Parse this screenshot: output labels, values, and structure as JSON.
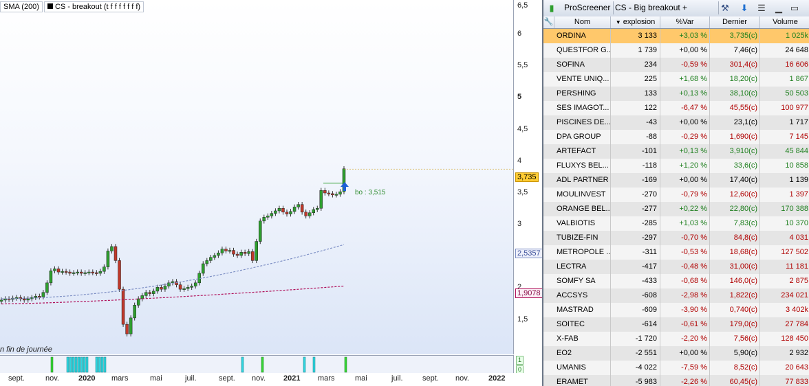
{
  "legend": {
    "sma": "SMA (200)",
    "cs": "CS - breakout (t f f f f f f f)"
  },
  "end_of_day": "n fin de journée",
  "bo_label": "bo : 3,515",
  "indicator_labels": [
    "1",
    "0"
  ],
  "price_axis": {
    "ticks": [
      "6,5",
      "6",
      "5,5",
      "5",
      "4,5",
      "4",
      "3,5",
      "3",
      "2,5",
      "2",
      "1,5"
    ],
    "last_price": "3,735",
    "sma_value": "2,5357",
    "ma2_value": "1,9078"
  },
  "time_axis": [
    "sept.",
    "nov.",
    "2020",
    "mars",
    "mai",
    "juil.",
    "sept.",
    "nov.",
    "2021",
    "mars",
    "mai",
    "juil.",
    "sept.",
    "nov.",
    "2022"
  ],
  "colors": {
    "up_candle": "#2e9e2e",
    "down_candle": "#c0392b",
    "sma_line": "#7d8fc4",
    "ma2_line": "#b0105a",
    "positive": "#1e7f1e",
    "negative": "#b00000",
    "selected_row": "#ffc86b"
  },
  "panel": {
    "app_name": "ProScreener",
    "screener_name": "CS - Big breakout + tracking",
    "icons": [
      "candlestick-icon",
      "wrench-icon",
      "download-icon",
      "menu-icon",
      "minimize-icon",
      "maximize-icon"
    ],
    "columns": [
      "Nom",
      "explosion",
      "%Var",
      "Dernier",
      "Volume"
    ],
    "rows": [
      {
        "name": "ORDINA",
        "explosion": "3 133",
        "var": "+3,03 %",
        "last": "3,735(c)",
        "volume": "1 025k",
        "trend": "up"
      },
      {
        "name": "QUESTFOR G...",
        "explosion": "1 739",
        "var": "+0,00 %",
        "last": "7,46(c)",
        "volume": "24 648",
        "trend": "flat"
      },
      {
        "name": "SOFINA",
        "explosion": "234",
        "var": "-0,59 %",
        "last": "301,4(c)",
        "volume": "16 606",
        "trend": "down"
      },
      {
        "name": "VENTE UNIQ...",
        "explosion": "225",
        "var": "+1,68 %",
        "last": "18,20(c)",
        "volume": "1 867",
        "trend": "up"
      },
      {
        "name": "PERSHING",
        "explosion": "133",
        "var": "+0,13 %",
        "last": "38,10(c)",
        "volume": "50 503",
        "trend": "up"
      },
      {
        "name": "SES IMAGOT...",
        "explosion": "122",
        "var": "-6,47 %",
        "last": "45,55(c)",
        "volume": "100 977",
        "trend": "down"
      },
      {
        "name": "PISCINES DE...",
        "explosion": "-43",
        "var": "+0,00 %",
        "last": "23,1(c)",
        "volume": "1 717",
        "trend": "flat"
      },
      {
        "name": "DPA GROUP",
        "explosion": "-88",
        "var": "-0,29 %",
        "last": "1,690(c)",
        "volume": "7 145",
        "trend": "down"
      },
      {
        "name": "ARTEFACT",
        "explosion": "-101",
        "var": "+0,13 %",
        "last": "3,910(c)",
        "volume": "45 844",
        "trend": "up"
      },
      {
        "name": "FLUXYS BEL...",
        "explosion": "-118",
        "var": "+1,20 %",
        "last": "33,6(c)",
        "volume": "10 858",
        "trend": "up"
      },
      {
        "name": "ADL PARTNER",
        "explosion": "-169",
        "var": "+0,00 %",
        "last": "17,40(c)",
        "volume": "1 139",
        "trend": "flat"
      },
      {
        "name": "MOULINVEST",
        "explosion": "-270",
        "var": "-0,79 %",
        "last": "12,60(c)",
        "volume": "1 397",
        "trend": "down"
      },
      {
        "name": "ORANGE BEL...",
        "explosion": "-277",
        "var": "+0,22 %",
        "last": "22,80(c)",
        "volume": "170 388",
        "trend": "up"
      },
      {
        "name": "VALBIOTIS",
        "explosion": "-285",
        "var": "+1,03 %",
        "last": "7,83(c)",
        "volume": "10 370",
        "trend": "up"
      },
      {
        "name": "TUBIZE-FIN",
        "explosion": "-297",
        "var": "-0,70 %",
        "last": "84,8(c)",
        "volume": "4 031",
        "trend": "down"
      },
      {
        "name": "METROPOLE ...",
        "explosion": "-311",
        "var": "-0,53 %",
        "last": "18,68(c)",
        "volume": "127 502",
        "trend": "down"
      },
      {
        "name": "LECTRA",
        "explosion": "-417",
        "var": "-0,48 %",
        "last": "31,00(c)",
        "volume": "11 181",
        "trend": "down"
      },
      {
        "name": "SOMFY SA",
        "explosion": "-433",
        "var": "-0,68 %",
        "last": "146,0(c)",
        "volume": "2 875",
        "trend": "down"
      },
      {
        "name": "ACCSYS",
        "explosion": "-608",
        "var": "-2,98 %",
        "last": "1,822(c)",
        "volume": "234 021",
        "trend": "down"
      },
      {
        "name": "MASTRAD",
        "explosion": "-609",
        "var": "-3,90 %",
        "last": "0,740(c)",
        "volume": "3 402k",
        "trend": "down"
      },
      {
        "name": "SOITEC",
        "explosion": "-614",
        "var": "-0,61 %",
        "last": "179,0(c)",
        "volume": "27 784",
        "trend": "down"
      },
      {
        "name": "X-FAB",
        "explosion": "-1 720",
        "var": "-2,20 %",
        "last": "7,56(c)",
        "volume": "128 450",
        "trend": "down"
      },
      {
        "name": "EO2",
        "explosion": "-2 551",
        "var": "+0,00 %",
        "last": "5,90(c)",
        "volume": "2 932",
        "trend": "flat"
      },
      {
        "name": "UMANIS",
        "explosion": "-4 022",
        "var": "-7,59 %",
        "last": "8,52(c)",
        "volume": "20 643",
        "trend": "down"
      },
      {
        "name": "ERAMET",
        "explosion": "-5 983",
        "var": "-2,26 %",
        "last": "60,45(c)",
        "volume": "77 833",
        "trend": "down"
      }
    ]
  }
}
